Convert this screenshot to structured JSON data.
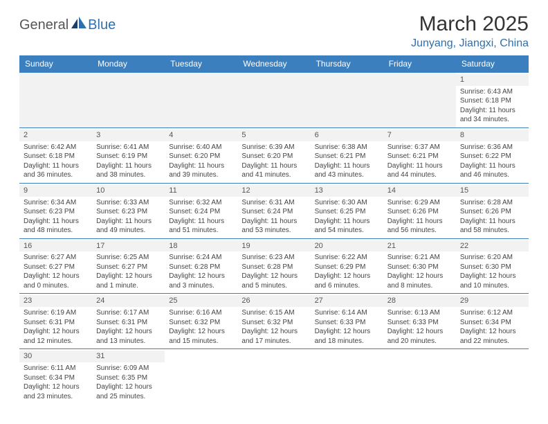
{
  "brand": {
    "general": "General",
    "blue": "Blue"
  },
  "title": "March 2025",
  "location": "Junyang, Jiangxi, China",
  "colors": {
    "header_bg": "#3b7fbf",
    "header_text": "#ffffff",
    "accent": "#2f6fad",
    "cell_border": "#3b7fbf",
    "daynum_bg": "#f2f2f2",
    "body_text": "#444444"
  },
  "weekdays": [
    "Sunday",
    "Monday",
    "Tuesday",
    "Wednesday",
    "Thursday",
    "Friday",
    "Saturday"
  ],
  "days": {
    "1": {
      "sunrise": "6:43 AM",
      "sunset": "6:18 PM",
      "daylight": "11 hours and 34 minutes."
    },
    "2": {
      "sunrise": "6:42 AM",
      "sunset": "6:18 PM",
      "daylight": "11 hours and 36 minutes."
    },
    "3": {
      "sunrise": "6:41 AM",
      "sunset": "6:19 PM",
      "daylight": "11 hours and 38 minutes."
    },
    "4": {
      "sunrise": "6:40 AM",
      "sunset": "6:20 PM",
      "daylight": "11 hours and 39 minutes."
    },
    "5": {
      "sunrise": "6:39 AM",
      "sunset": "6:20 PM",
      "daylight": "11 hours and 41 minutes."
    },
    "6": {
      "sunrise": "6:38 AM",
      "sunset": "6:21 PM",
      "daylight": "11 hours and 43 minutes."
    },
    "7": {
      "sunrise": "6:37 AM",
      "sunset": "6:21 PM",
      "daylight": "11 hours and 44 minutes."
    },
    "8": {
      "sunrise": "6:36 AM",
      "sunset": "6:22 PM",
      "daylight": "11 hours and 46 minutes."
    },
    "9": {
      "sunrise": "6:34 AM",
      "sunset": "6:23 PM",
      "daylight": "11 hours and 48 minutes."
    },
    "10": {
      "sunrise": "6:33 AM",
      "sunset": "6:23 PM",
      "daylight": "11 hours and 49 minutes."
    },
    "11": {
      "sunrise": "6:32 AM",
      "sunset": "6:24 PM",
      "daylight": "11 hours and 51 minutes."
    },
    "12": {
      "sunrise": "6:31 AM",
      "sunset": "6:24 PM",
      "daylight": "11 hours and 53 minutes."
    },
    "13": {
      "sunrise": "6:30 AM",
      "sunset": "6:25 PM",
      "daylight": "11 hours and 54 minutes."
    },
    "14": {
      "sunrise": "6:29 AM",
      "sunset": "6:26 PM",
      "daylight": "11 hours and 56 minutes."
    },
    "15": {
      "sunrise": "6:28 AM",
      "sunset": "6:26 PM",
      "daylight": "11 hours and 58 minutes."
    },
    "16": {
      "sunrise": "6:27 AM",
      "sunset": "6:27 PM",
      "daylight": "12 hours and 0 minutes."
    },
    "17": {
      "sunrise": "6:25 AM",
      "sunset": "6:27 PM",
      "daylight": "12 hours and 1 minute."
    },
    "18": {
      "sunrise": "6:24 AM",
      "sunset": "6:28 PM",
      "daylight": "12 hours and 3 minutes."
    },
    "19": {
      "sunrise": "6:23 AM",
      "sunset": "6:28 PM",
      "daylight": "12 hours and 5 minutes."
    },
    "20": {
      "sunrise": "6:22 AM",
      "sunset": "6:29 PM",
      "daylight": "12 hours and 6 minutes."
    },
    "21": {
      "sunrise": "6:21 AM",
      "sunset": "6:30 PM",
      "daylight": "12 hours and 8 minutes."
    },
    "22": {
      "sunrise": "6:20 AM",
      "sunset": "6:30 PM",
      "daylight": "12 hours and 10 minutes."
    },
    "23": {
      "sunrise": "6:19 AM",
      "sunset": "6:31 PM",
      "daylight": "12 hours and 12 minutes."
    },
    "24": {
      "sunrise": "6:17 AM",
      "sunset": "6:31 PM",
      "daylight": "12 hours and 13 minutes."
    },
    "25": {
      "sunrise": "6:16 AM",
      "sunset": "6:32 PM",
      "daylight": "12 hours and 15 minutes."
    },
    "26": {
      "sunrise": "6:15 AM",
      "sunset": "6:32 PM",
      "daylight": "12 hours and 17 minutes."
    },
    "27": {
      "sunrise": "6:14 AM",
      "sunset": "6:33 PM",
      "daylight": "12 hours and 18 minutes."
    },
    "28": {
      "sunrise": "6:13 AM",
      "sunset": "6:33 PM",
      "daylight": "12 hours and 20 minutes."
    },
    "29": {
      "sunrise": "6:12 AM",
      "sunset": "6:34 PM",
      "daylight": "12 hours and 22 minutes."
    },
    "30": {
      "sunrise": "6:11 AM",
      "sunset": "6:34 PM",
      "daylight": "12 hours and 23 minutes."
    },
    "31": {
      "sunrise": "6:09 AM",
      "sunset": "6:35 PM",
      "daylight": "12 hours and 25 minutes."
    }
  },
  "labels": {
    "sunrise_prefix": "Sunrise: ",
    "sunset_prefix": "Sunset: ",
    "daylight_prefix": "Daylight: "
  },
  "layout": {
    "first_day_column": 6,
    "num_days": 31,
    "columns": 7
  }
}
